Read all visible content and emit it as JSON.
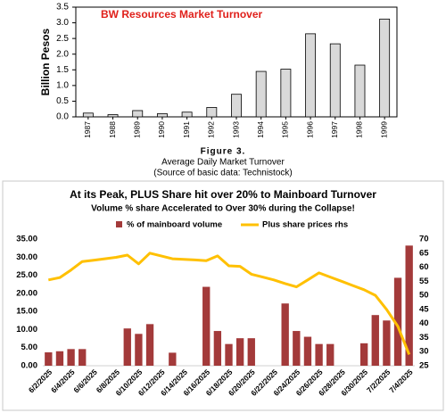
{
  "chart_data": [
    {
      "type": "bar",
      "title": "BW Resources Market Turnover",
      "ylabel": "Billion Pesos",
      "categories": [
        "1987",
        "1988",
        "1989",
        "1990",
        "1991",
        "1992",
        "1993",
        "1994",
        "1995",
        "1996",
        "1997",
        "1998",
        "1999"
      ],
      "values": [
        0.12,
        0.07,
        0.2,
        0.1,
        0.15,
        0.3,
        0.72,
        1.45,
        1.52,
        2.65,
        2.33,
        1.65,
        3.12
      ],
      "color": "#d9d9d9",
      "ylim": [
        0,
        3.5
      ],
      "yticks": [
        {
          "value": 0,
          "label": "0.0"
        },
        0.5,
        {
          "value": 1,
          "label": "1.0"
        },
        1.5,
        {
          "value": 2,
          "label": "2.0"
        },
        2.5,
        {
          "value": 3,
          "label": "3.0"
        },
        3.5
      ],
      "title_color": "#e0201b",
      "figure_label": "Figure 3.",
      "caption": "Average Daily Market Turnover",
      "source": "(Source of basic data: Technistock)"
    },
    {
      "type": "bar_line",
      "title": "At its Peak, PLUS Share hit over 20% to Mainboard Turnover",
      "subtitle": "Volume % share Accelerated to Over 30% during the Collapse!",
      "categories": [
        "6/2/2025",
        null,
        "6/4/2025",
        null,
        "6/6/2025",
        null,
        "6/8/2025",
        null,
        "6/10/2025",
        null,
        "6/12/2025",
        null,
        "6/14/2025",
        null,
        "6/16/2025",
        null,
        "6/18/2025",
        null,
        "6/20/2025",
        null,
        "6/22/2025",
        null,
        "6/24/2025",
        null,
        "6/26/2025",
        null,
        "6/28/2025",
        null,
        "6/30/2025",
        null,
        "7/2/2025",
        null,
        "7/4/2025"
      ],
      "series": [
        {
          "name": "% of mainboard volume",
          "type": "bar",
          "color": "#a33a3a",
          "values": [
            3.7,
            4.0,
            4.6,
            4.6,
            null,
            null,
            null,
            10.3,
            8.8,
            11.5,
            null,
            3.6,
            null,
            null,
            21.8,
            9.6,
            6.0,
            7.6,
            7.6,
            null,
            null,
            17.2,
            9.6,
            8.0,
            6.0,
            6.0,
            null,
            null,
            6.2,
            14.0,
            12.5,
            24.3,
            33.2
          ]
        },
        {
          "name": "Plus share prices rhs",
          "type": "line",
          "axis": "y2",
          "color": "#ffc000",
          "values": [
            55.5,
            56.3,
            59,
            62,
            62.5,
            63,
            63.5,
            64.3,
            61.2,
            65,
            64,
            63,
            62.8,
            62.6,
            62.3,
            64,
            60.5,
            60.3,
            57.5,
            56.5,
            55.5,
            54.2,
            53,
            55.5,
            58,
            56.5,
            55,
            53.5,
            52,
            50,
            45,
            39,
            29
          ]
        }
      ],
      "ylim": [
        0,
        35
      ],
      "yticks": [
        {
          "value": 0,
          "label": "0.00"
        },
        {
          "value": 5,
          "label": "5.00"
        },
        {
          "value": 10,
          "label": "10.00"
        },
        {
          "value": 15,
          "label": "15.00"
        },
        {
          "value": 20,
          "label": "20.00"
        },
        {
          "value": 25,
          "label": "25.00"
        },
        {
          "value": 30,
          "label": "30.00"
        },
        {
          "value": 35,
          "label": "35.00"
        }
      ],
      "y2lim": [
        25,
        70
      ],
      "y2ticks": [
        25,
        30,
        35,
        40,
        45,
        50,
        55,
        60,
        65,
        70
      ]
    }
  ]
}
